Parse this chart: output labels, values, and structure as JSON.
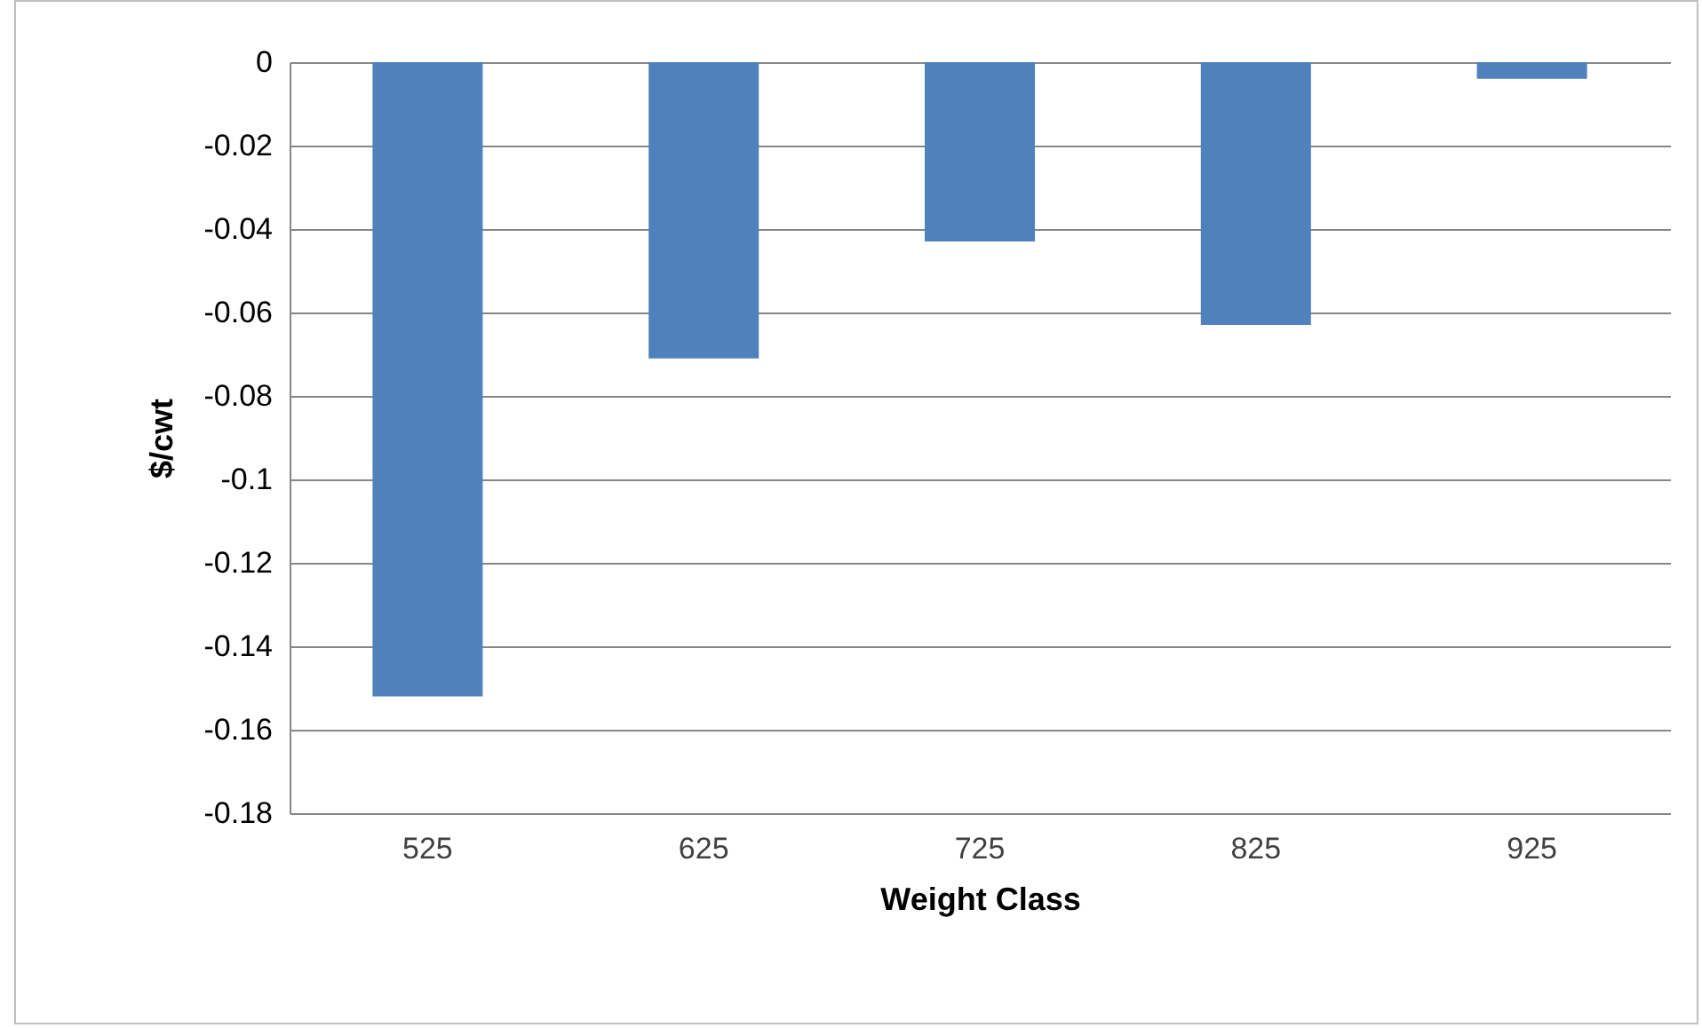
{
  "chart_data": {
    "type": "bar",
    "xlabel": "Weight Class",
    "ylabel": "$/cwt",
    "categories": [
      "525",
      "625",
      "725",
      "825",
      "925"
    ],
    "values": [
      -0.152,
      -0.071,
      -0.043,
      -0.063,
      -0.004
    ],
    "color": "#4f81bd",
    "ylim": [
      -0.18,
      0
    ],
    "yticks": [
      {
        "value": -0.18,
        "label": "-0.18"
      },
      {
        "value": -0.16,
        "label": "-0.16"
      },
      {
        "value": -0.14,
        "label": "-0.14"
      },
      {
        "value": -0.12,
        "label": "-0.12"
      },
      {
        "value": -0.1,
        "label": "-0.1"
      },
      {
        "value": -0.08,
        "label": "-0.08"
      },
      {
        "value": -0.06,
        "label": "-0.06"
      },
      {
        "value": -0.04,
        "label": "-0.04"
      },
      {
        "value": -0.02,
        "label": "-0.02"
      },
      {
        "value": 0,
        "label": "0"
      }
    ],
    "grid": "y"
  }
}
